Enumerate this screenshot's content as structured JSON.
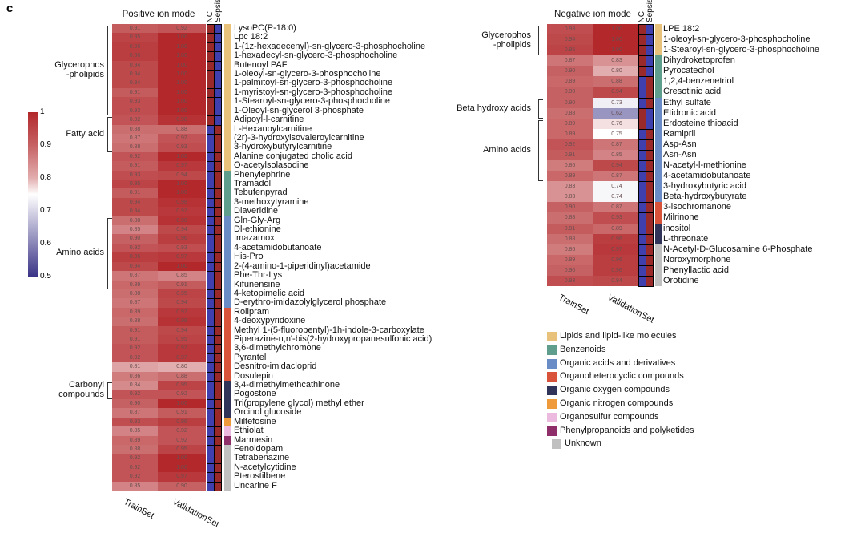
{
  "panel_label": "c",
  "chart_data": [
    {
      "type": "heatmap",
      "title": "Positive ion mode",
      "columns": [
        "TrainSet",
        "ValidationSet"
      ],
      "group_columns": [
        "NC",
        "Sepsis"
      ],
      "rows": [
        "LysoPC(P-18:0)",
        "Lpc 18:2",
        "1-(1z-hexadecenyl)-sn-glycero-3-phosphocholine",
        "1-hexadecyl-sn-glycero-3-phosphocholine",
        "Butenoyl PAF",
        "1-oleoyl-sn-glycero-3-phosphocholine",
        "1-palmitoyl-sn-glycero-3-phosphocholine",
        "1-myristoyl-sn-glycero-3-phosphocholine",
        "1-Stearoyl-sn-glycero-3-phosphocholine",
        "1-Oleoyl-sn-glycerol 3-phosphate",
        "Adipoyl-l-carnitine",
        "L-Hexanoylcarnitine",
        "(2r)-3-hydroxyisovaleroylcarnitine",
        "3-hydroxybutyrylcarnitine",
        "Alanine conjugated cholic acid",
        "O-acetylsolasodine",
        "Phenylephrine",
        "Tramadol",
        "Tebufenpyrad",
        "3-methoxytyramine",
        "Diaveridine",
        "Gln-Gly-Arg",
        "Dl-ethionine",
        "Imazamox",
        "4-acetamidobutanoate",
        "His-Pro",
        "2-(4-amino-1-piperidinyl)acetamide",
        "Phe-Thr-Lys",
        "Kifunensine",
        "4-ketopimelic acid",
        "D-erythro-imidazolylglycerol phosphate",
        "Rolipram",
        "4-deoxypyridoxine",
        "Methyl 1-(5-fluoropentyl)-1h-indole-3-carboxylate",
        "Piperazine-n,n'-bis(2-hydroxypropanesulfonic acid)",
        "3,6-dimethylchromone",
        "Pyrantel",
        "Desnitro-imidacloprid",
        "Dosulepin",
        "3,4-dimethylmethcathinone",
        "Pogostone",
        "Tri(propylene glycol) methyl ether",
        "Orcinol glucoside",
        "Miltefosine",
        "Ethiolat",
        "Marmesin",
        "Fenoldopam",
        "Tetrabenazine",
        "N-acetylcytidine",
        "Pterostilbene",
        "Uncarine F"
      ],
      "train": [
        0.91,
        0.95,
        0.96,
        0.96,
        0.94,
        0.94,
        0.94,
        0.91,
        0.93,
        0.93,
        0.92,
        0.88,
        0.87,
        0.88,
        0.92,
        0.91,
        0.93,
        0.95,
        0.91,
        0.94,
        0.94,
        0.88,
        0.85,
        0.9,
        0.92,
        0.96,
        0.94,
        0.87,
        0.89,
        0.88,
        0.87,
        0.89,
        0.88,
        0.91,
        0.91,
        0.92,
        0.92,
        0.81,
        0.86,
        0.84,
        0.92,
        0.9,
        0.87,
        0.93,
        0.85,
        0.89,
        0.88,
        0.92,
        0.92,
        0.92,
        0.85
      ],
      "validation": [
        0.92,
        1.0,
        1.0,
        1.0,
        1.0,
        1.0,
        1.0,
        1.0,
        1.0,
        1.0,
        0.98,
        0.88,
        0.92,
        0.93,
        1.0,
        0.97,
        0.94,
        1.0,
        1.0,
        0.98,
        0.97,
        0.98,
        0.94,
        0.96,
        0.93,
        0.97,
        1.0,
        0.85,
        0.91,
        0.95,
        0.94,
        0.97,
        0.98,
        0.94,
        0.95,
        0.97,
        0.97,
        0.8,
        0.88,
        0.95,
        0.92,
        1.0,
        0.91,
        0.96,
        0.92,
        0.92,
        0.95,
        1.0,
        1.0,
        0.97,
        0.9
      ],
      "higher_in_nc_rows": [
        1,
        2,
        3,
        4,
        5,
        6,
        7,
        8,
        9,
        10,
        11
      ],
      "category": [
        0,
        0,
        0,
        0,
        0,
        0,
        0,
        0,
        0,
        0,
        0,
        0,
        0,
        0,
        0,
        0,
        1,
        1,
        1,
        1,
        1,
        2,
        2,
        2,
        2,
        2,
        2,
        2,
        2,
        2,
        2,
        3,
        3,
        3,
        3,
        3,
        3,
        3,
        3,
        4,
        4,
        4,
        4,
        5,
        6,
        7,
        8,
        8,
        8,
        8,
        8
      ],
      "groups": [
        {
          "label": "Glycerophos\n-pholipids",
          "from": 1,
          "to": 10
        },
        {
          "label": "Fatty acid",
          "from": 11,
          "to": 14
        },
        {
          "label": "Amino acids",
          "from": 22,
          "to": 29
        },
        {
          "label": "Carbonyl\ncompounds",
          "from": 40,
          "to": 41
        }
      ]
    },
    {
      "type": "heatmap",
      "title": "Negative ion mode",
      "columns": [
        "TrainSet",
        "ValidationSet"
      ],
      "group_columns": [
        "NC",
        "Sepsis"
      ],
      "rows": [
        "LPE 18:2",
        "1-oleoyl-sn-glycero-3-phosphocholine",
        "1-Stearoyl-sn-glycero-3-phosphocholine",
        "Dihydroketoprofen",
        "Pyrocatechol",
        "1,2,4-benzenetriol",
        "Cresotinic acid",
        "Ethyl sulfate",
        "Etidronic acid",
        "Erdosteine thioacid",
        "Ramipril",
        "Asp-Asn",
        "Asn-Asn",
        "N-acetyl-l-methionine",
        "4-acetamidobutanoate",
        "3-hydroxybutyric acid",
        "Beta-hydroxybutyrate",
        "3-isochromanone",
        "Milrinone",
        "inositol",
        "L-threonate",
        "N-Acetyl-D-Glucosamine 6-Phosphate",
        "Noroxymorphone",
        "Phenyllactic acid",
        "Orotidine"
      ],
      "train": [
        0.93,
        0.94,
        0.95,
        0.87,
        0.9,
        0.89,
        0.9,
        0.9,
        0.88,
        0.89,
        0.89,
        0.92,
        0.91,
        0.86,
        0.89,
        0.83,
        0.83,
        0.9,
        0.88,
        0.91,
        0.88,
        0.86,
        0.89,
        0.9,
        0.93
      ],
      "validation": [
        1.0,
        1.0,
        1.0,
        0.83,
        0.8,
        0.88,
        0.94,
        0.73,
        0.62,
        0.76,
        0.75,
        0.87,
        0.85,
        0.94,
        0.87,
        0.74,
        0.74,
        0.87,
        0.93,
        0.89,
        0.96,
        0.97,
        0.96,
        0.96,
        0.94
      ],
      "higher_in_nc_rows": [
        1,
        2,
        3,
        4,
        5,
        9,
        10
      ],
      "category": [
        0,
        0,
        0,
        1,
        1,
        1,
        1,
        2,
        2,
        2,
        2,
        2,
        2,
        2,
        2,
        2,
        2,
        3,
        3,
        4,
        4,
        8,
        8,
        8,
        8
      ],
      "groups": [
        {
          "label": "Glycerophos\n-pholipids",
          "from": 1,
          "to": 3
        },
        {
          "label": "Beta hydroxy acids",
          "from": 8,
          "to": 9
        },
        {
          "label": "Amino acids",
          "from": 10,
          "to": 15
        }
      ]
    }
  ],
  "colorbar": {
    "ticks": [
      "1",
      "0.9",
      "0.8",
      "0.7",
      "0.6",
      "0.5"
    ],
    "range": [
      0.5,
      1
    ],
    "low_color": "#3b3487",
    "mid_color": "#ffffff",
    "high_color": "#b2282b"
  },
  "nc_sepsis_colors": {
    "high": "#9a2a2a",
    "low": "#3f3fae"
  },
  "legend": [
    {
      "label": "Lipids and lipid-like molecules",
      "color": "#e8c27a"
    },
    {
      "label": "Benzenoids",
      "color": "#5f9e8c"
    },
    {
      "label": "Organic acids and derivatives",
      "color": "#6a8cc6"
    },
    {
      "label": "Organoheterocyclic compounds",
      "color": "#d9533a"
    },
    {
      "label": "Organic oxygen compounds",
      "color": "#2f3458"
    },
    {
      "label": "Organic nitrogen compounds",
      "color": "#ef9a3a"
    },
    {
      "label": "Organosulfur compounds",
      "color": "#ecbadf"
    },
    {
      "label": "Phenylpropanoids and polyketides",
      "color": "#8e2f6a"
    },
    {
      "label": "Unknown",
      "color": "#c0c0c0"
    }
  ]
}
